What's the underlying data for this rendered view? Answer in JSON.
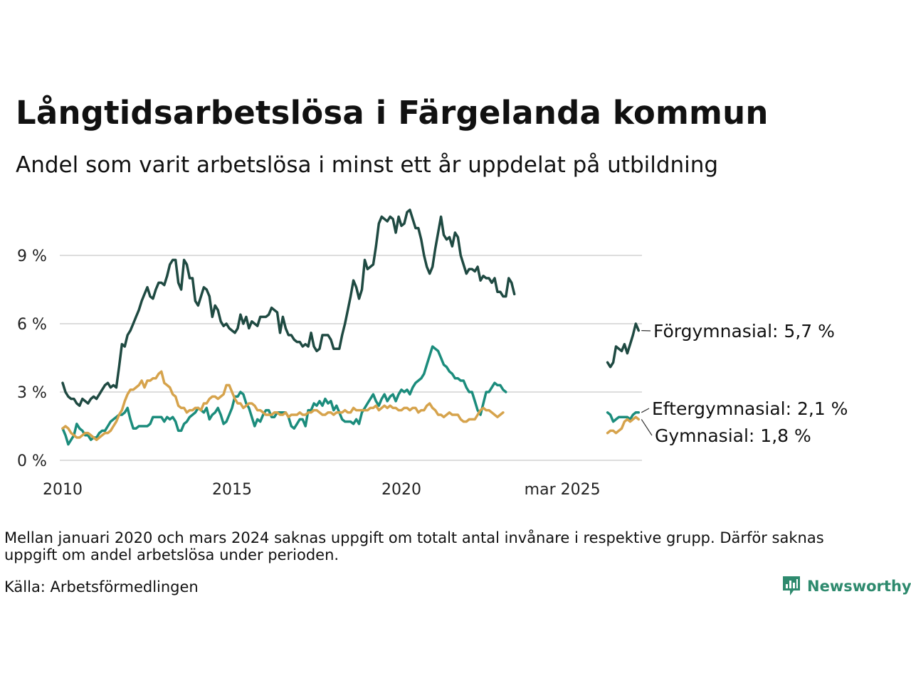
{
  "title": "Långtidsarbetslösa i Färgelanda kommun",
  "subtitle": "Andel som varit arbetslösa i minst ett år uppdelat på utbildning",
  "note": "Mellan januari 2020 och mars 2024 saknas uppgift om totalt antal invånare i respektive grupp. Därför saknas uppgift om andel arbetslösa under perioden.",
  "source": "Källa: Arbetsförmedlingen",
  "logo": {
    "text": "Newsworthy",
    "icon": "newsworthy-chart-icon",
    "color": "#2e8a6e"
  },
  "chart_data": {
    "type": "line",
    "y_ticks": [
      "0 %",
      "3 %",
      "6 %",
      "9 %"
    ],
    "y_tick_values": [
      0,
      3,
      6,
      9
    ],
    "x_ticks": [
      "2010",
      "2015",
      "2020",
      "mar 2025"
    ],
    "x_tick_values": [
      0,
      60,
      120,
      177
    ],
    "ylim": [
      0,
      11.5
    ],
    "grid": true,
    "series": [
      {
        "name": "Förgymnasial",
        "end_label": "Förgymnasial: 5,7 %",
        "color": "#1f4a42",
        "segments": [
          {
            "start_index": 0,
            "values": [
              3.4,
              3.0,
              2.8,
              2.7,
              2.7,
              2.5,
              2.4,
              2.7,
              2.6,
              2.5,
              2.7,
              2.8,
              2.7,
              2.9,
              3.1,
              3.3,
              3.4,
              3.2,
              3.3,
              3.2,
              4.1,
              5.1,
              5.0,
              5.5,
              5.7,
              6.0,
              6.3,
              6.6,
              7.0,
              7.3,
              7.6,
              7.2,
              7.1,
              7.5,
              7.8,
              7.8,
              7.7,
              8.1,
              8.6,
              8.8,
              8.8,
              7.8,
              7.5,
              8.8,
              8.6,
              8.0,
              8.0,
              7.0,
              6.8,
              7.2,
              7.6,
              7.5,
              7.2,
              6.3,
              6.8,
              6.6,
              6.1,
              5.9,
              6.0,
              5.8,
              5.7,
              5.6,
              5.8,
              6.4,
              6.0,
              6.3,
              5.8,
              6.1,
              6.0,
              5.9,
              6.3,
              6.3,
              6.3,
              6.4,
              6.7,
              6.6,
              6.5,
              5.6,
              6.3,
              5.8,
              5.5,
              5.5,
              5.3,
              5.2,
              5.2,
              5.0,
              5.1,
              5.0,
              5.6,
              5.0,
              4.8,
              4.9,
              5.5,
              5.5,
              5.5,
              5.3,
              4.9,
              4.9,
              4.9,
              5.5,
              6.0,
              6.6,
              7.2,
              7.9,
              7.6,
              7.1,
              7.5,
              8.8,
              8.4,
              8.5,
              8.6,
              9.4,
              10.4,
              10.7,
              10.6,
              10.5,
              10.7,
              10.6,
              10.0,
              10.7,
              10.3,
              10.4,
              10.9,
              11.0,
              10.6,
              10.2,
              10.2,
              9.7,
              9.0,
              8.5,
              8.2,
              8.5,
              9.3,
              10.0,
              10.7,
              9.9,
              9.7,
              9.8,
              9.4,
              10.0,
              9.8,
              9.0,
              8.6,
              8.2,
              8.4,
              8.4,
              8.3,
              8.5,
              7.9,
              8.1,
              8.0,
              8.0,
              7.8,
              8.0,
              7.4,
              7.4,
              7.2,
              7.2,
              8.0,
              7.8,
              7.3
            ]
          },
          {
            "start_index": 193,
            "values": [
              4.3,
              4.1,
              4.3,
              5.0,
              4.9,
              4.8,
              5.1,
              4.7,
              5.1,
              5.5,
              6.0,
              5.7
            ]
          }
        ]
      },
      {
        "name": "Eftergymnasial",
        "end_label": "Eftergymnasial: 2,1 %",
        "color": "#1b8c7c",
        "segments": [
          {
            "start_index": 0,
            "values": [
              1.4,
              1.1,
              0.7,
              0.9,
              1.1,
              1.6,
              1.4,
              1.3,
              1.1,
              1.1,
              0.9,
              1.0,
              1.0,
              1.2,
              1.3,
              1.3,
              1.5,
              1.7,
              1.8,
              1.9,
              2.0,
              2.0,
              2.1,
              2.3,
              1.8,
              1.4,
              1.4,
              1.5,
              1.5,
              1.5,
              1.5,
              1.6,
              1.9,
              1.9,
              1.9,
              1.9,
              1.7,
              1.9,
              1.8,
              1.9,
              1.7,
              1.3,
              1.3,
              1.6,
              1.7,
              1.9,
              2.0,
              2.1,
              2.3,
              2.2,
              2.1,
              2.3,
              1.8,
              2.0,
              2.1,
              2.3,
              2.0,
              1.6,
              1.7,
              2.0,
              2.3,
              2.8,
              2.8,
              3.0,
              2.9,
              2.5,
              2.3,
              1.9,
              1.5,
              1.8,
              1.7,
              2.0,
              2.2,
              2.2,
              1.9,
              1.9,
              2.1,
              2.1,
              2.1,
              2.1,
              1.9,
              1.5,
              1.4,
              1.6,
              1.8,
              1.8,
              1.5,
              2.2,
              2.2,
              2.5,
              2.4,
              2.6,
              2.4,
              2.7,
              2.5,
              2.6,
              2.2,
              2.4,
              2.1,
              1.8,
              1.7,
              1.7,
              1.7,
              1.6,
              1.8,
              1.6,
              2.1,
              2.3,
              2.5,
              2.7,
              2.9,
              2.6,
              2.4,
              2.7,
              2.9,
              2.6,
              2.8,
              2.9,
              2.6,
              2.9,
              3.1,
              3.0,
              3.1,
              2.9,
              3.2,
              3.4,
              3.5,
              3.6,
              3.8,
              4.2,
              4.6,
              5.0,
              4.9,
              4.8,
              4.5,
              4.2,
              4.1,
              3.9,
              3.8,
              3.6,
              3.6,
              3.5,
              3.5,
              3.2,
              3.0,
              3.0,
              2.6,
              2.2,
              2.0,
              2.5,
              3.0,
              3.0,
              3.2,
              3.4,
              3.3,
              3.3,
              3.1,
              3.0
            ]
          },
          {
            "start_index": 193,
            "values": [
              2.1,
              2.0,
              1.7,
              1.8,
              1.9,
              1.9,
              1.9,
              1.9,
              1.8,
              2.0,
              2.1,
              2.1
            ]
          }
        ]
      },
      {
        "name": "Gymnasial",
        "end_label": "Gymnasial: 1,8 %",
        "color": "#d6a34c",
        "segments": [
          {
            "start_index": 0,
            "values": [
              1.4,
              1.5,
              1.4,
              1.2,
              1.1,
              1.0,
              1.0,
              1.1,
              1.2,
              1.2,
              1.1,
              1.0,
              0.9,
              1.0,
              1.1,
              1.2,
              1.2,
              1.3,
              1.5,
              1.7,
              2.0,
              2.2,
              2.6,
              2.9,
              3.1,
              3.1,
              3.2,
              3.3,
              3.5,
              3.2,
              3.5,
              3.5,
              3.6,
              3.6,
              3.8,
              3.9,
              3.4,
              3.3,
              3.2,
              2.9,
              2.8,
              2.4,
              2.3,
              2.3,
              2.1,
              2.2,
              2.2,
              2.3,
              2.3,
              2.2,
              2.5,
              2.5,
              2.7,
              2.8,
              2.8,
              2.7,
              2.8,
              2.9,
              3.3,
              3.3,
              3.0,
              2.7,
              2.5,
              2.5,
              2.3,
              2.4,
              2.5,
              2.5,
              2.4,
              2.2,
              2.2,
              2.1,
              2.0,
              2.0,
              2.0,
              2.1,
              2.1,
              2.0,
              2.0,
              2.1,
              1.9,
              2.0,
              2.0,
              2.0,
              2.1,
              2.0,
              2.0,
              2.1,
              2.1,
              2.2,
              2.2,
              2.1,
              2.0,
              2.0,
              2.1,
              2.1,
              2.0,
              2.1,
              2.1,
              2.1,
              2.2,
              2.1,
              2.1,
              2.3,
              2.2,
              2.2,
              2.2,
              2.2,
              2.2,
              2.3,
              2.3,
              2.4,
              2.2,
              2.3,
              2.4,
              2.3,
              2.4,
              2.3,
              2.3,
              2.2,
              2.2,
              2.3,
              2.3,
              2.2,
              2.3,
              2.3,
              2.1,
              2.2,
              2.2,
              2.4,
              2.5,
              2.3,
              2.2,
              2.0,
              2.0,
              1.9,
              2.0,
              2.1,
              2.0,
              2.0,
              2.0,
              1.8,
              1.7,
              1.7,
              1.8,
              1.8,
              1.8,
              2.0,
              2.2,
              2.3,
              2.2,
              2.2,
              2.1,
              2.0,
              1.9,
              2.0,
              2.1
            ]
          },
          {
            "start_index": 193,
            "values": [
              1.2,
              1.3,
              1.3,
              1.2,
              1.3,
              1.4,
              1.7,
              1.8,
              1.7,
              1.8,
              1.9,
              1.8
            ]
          }
        ]
      }
    ]
  }
}
